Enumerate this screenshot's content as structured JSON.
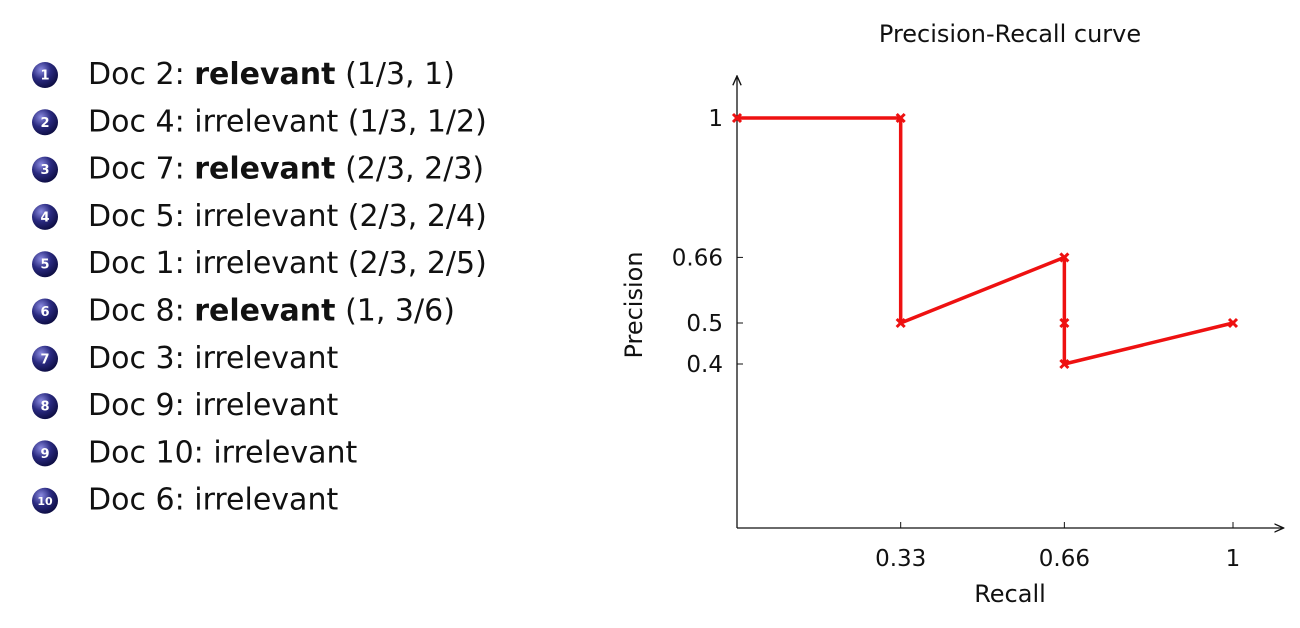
{
  "list": {
    "items": [
      {
        "number": "1",
        "doc": "Doc 2:",
        "label": "relevant",
        "bold": true,
        "pair": "(1/3, 1)"
      },
      {
        "number": "2",
        "doc": "Doc 4:",
        "label": "irrelevant",
        "bold": false,
        "pair": "(1/3, 1/2)"
      },
      {
        "number": "3",
        "doc": "Doc 7:",
        "label": "relevant",
        "bold": true,
        "pair": "(2/3, 2/3)"
      },
      {
        "number": "4",
        "doc": "Doc 5:",
        "label": "irrelevant",
        "bold": false,
        "pair": "(2/3, 2/4)"
      },
      {
        "number": "5",
        "doc": "Doc 1:",
        "label": "irrelevant",
        "bold": false,
        "pair": "(2/3, 2/5)"
      },
      {
        "number": "6",
        "doc": "Doc 8:",
        "label": "relevant",
        "bold": true,
        "pair": "(1, 3/6)"
      },
      {
        "number": "7",
        "doc": "Doc 3:",
        "label": "irrelevant",
        "bold": false
      },
      {
        "number": "8",
        "doc": "Doc 9:",
        "label": "irrelevant",
        "bold": false
      },
      {
        "number": "9",
        "doc": "Doc 10:",
        "label": "irrelevant",
        "bold": false
      },
      {
        "number": "10",
        "doc": "Doc 6:",
        "label": "irrelevant",
        "bold": false
      }
    ]
  },
  "chart_data": {
    "type": "line",
    "title": "Precision-Recall curve",
    "x_label": "Recall",
    "y_label": "Precision",
    "x": [
      0,
      0.33,
      0.33,
      0.66,
      0.66,
      0.66,
      1
    ],
    "series": [
      {
        "name": "Precision",
        "color": "#ee1111",
        "values": [
          1,
          1,
          0.5,
          0.66,
          0.5,
          0.4,
          0.5
        ]
      }
    ],
    "xlim": [
      0,
      1.1
    ],
    "ylim": [
      0,
      1.1
    ],
    "xticks": [
      0.33,
      0.66,
      1
    ],
    "yticks": [
      0.4,
      0.5,
      0.66,
      1
    ]
  }
}
